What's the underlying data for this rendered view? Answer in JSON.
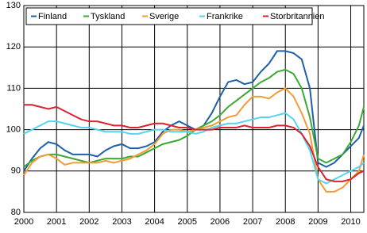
{
  "chart_data": {
    "type": "line",
    "x": [
      2000,
      2000.25,
      2000.5,
      2000.75,
      2001,
      2001.25,
      2001.5,
      2001.75,
      2002,
      2002.25,
      2002.5,
      2002.75,
      2003,
      2003.25,
      2003.5,
      2003.75,
      2004,
      2004.25,
      2004.5,
      2004.75,
      2005,
      2005.25,
      2005.5,
      2005.75,
      2006,
      2006.25,
      2006.5,
      2006.75,
      2007,
      2007.25,
      2007.5,
      2007.75,
      2008,
      2008.25,
      2008.5,
      2008.75,
      2009,
      2009.25,
      2009.5,
      2009.75,
      2010,
      2010.25,
      2010.4
    ],
    "series": [
      {
        "name": "Finland",
        "color": "#1f5fa8",
        "values": [
          90,
          93,
          95.5,
          97,
          96.5,
          95,
          94,
          94,
          94,
          93.5,
          95,
          96,
          96.5,
          95.5,
          95.5,
          96,
          97,
          99.5,
          101,
          102,
          101,
          100,
          101,
          104,
          108,
          111.5,
          112,
          111,
          111.5,
          114,
          116,
          119,
          119,
          118.5,
          117,
          110,
          92,
          91,
          92,
          94,
          96,
          98,
          101
        ]
      },
      {
        "name": "Tyskland",
        "color": "#3aaa35",
        "values": [
          91,
          92.5,
          93.5,
          94,
          94,
          93.5,
          93,
          92.5,
          92,
          92.5,
          93,
          93,
          93,
          93.5,
          93.5,
          94.5,
          95.5,
          96.5,
          97,
          97.5,
          98.5,
          100,
          101,
          102,
          103.5,
          105.5,
          107,
          108.5,
          110,
          111.5,
          112.5,
          114,
          114.5,
          113.5,
          110,
          103,
          93,
          92,
          93,
          94,
          97,
          101,
          105.5
        ]
      },
      {
        "name": "Sverige",
        "color": "#f39c32",
        "values": [
          89,
          92,
          93.5,
          94,
          93,
          91.5,
          92,
          92,
          92,
          92,
          92.5,
          92,
          92.5,
          93,
          94,
          95,
          96.5,
          99,
          100,
          100,
          99.5,
          100,
          100.5,
          101,
          102,
          103,
          103.5,
          106,
          108,
          108,
          107.5,
          109,
          110,
          108,
          104,
          99,
          88,
          85,
          85,
          86,
          88,
          90,
          94
        ]
      },
      {
        "name": "Frankrike",
        "color": "#55d4f0",
        "values": [
          99,
          100,
          101,
          102,
          102,
          101.5,
          101,
          100.5,
          100.5,
          100,
          99.5,
          99.5,
          99.5,
          99,
          99,
          99.5,
          100,
          100,
          99.5,
          99.5,
          99.5,
          99,
          99.5,
          100.5,
          101,
          101.5,
          101.5,
          102,
          102.5,
          103,
          103,
          103.5,
          104,
          102.5,
          99,
          95,
          88,
          87,
          88,
          89,
          90,
          91,
          92
        ]
      },
      {
        "name": "Storbritannien",
        "color": "#d9232d",
        "values": [
          106,
          106,
          105.5,
          105,
          105.5,
          104.5,
          103.5,
          102.5,
          102,
          102,
          101.5,
          101,
          101,
          100.5,
          100.5,
          101,
          101.5,
          101.5,
          101,
          100.5,
          100.5,
          100,
          100,
          100,
          100.5,
          100.5,
          100.5,
          101,
          100.5,
          100.5,
          100.5,
          101,
          101,
          100.5,
          99,
          96,
          91,
          88,
          87.5,
          87.5,
          88,
          89.5,
          90
        ]
      }
    ],
    "xlim": [
      2000,
      2010.4
    ],
    "xticks": [
      2000,
      2001,
      2002,
      2003,
      2004,
      2005,
      2006,
      2007,
      2008,
      2009,
      2010
    ],
    "ylim": [
      80,
      130
    ],
    "yticks": [
      80,
      90,
      100,
      110,
      120,
      130
    ],
    "grid": true
  }
}
